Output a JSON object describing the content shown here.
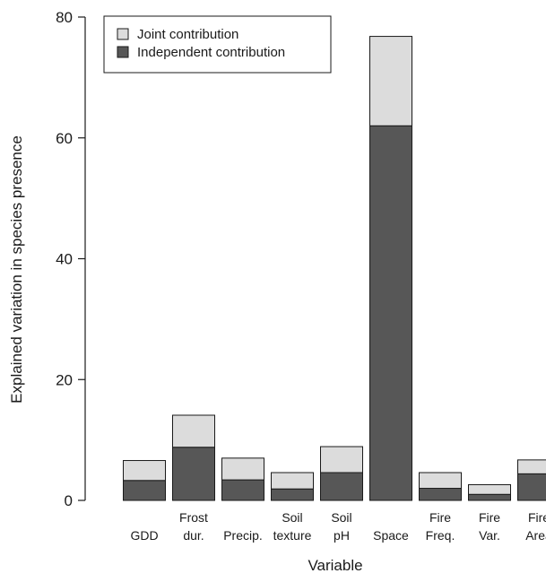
{
  "chart_data": {
    "type": "bar",
    "stacked": true,
    "xlabel": "Variable",
    "ylabel": "Explained variation in species presence",
    "ylim": [
      0,
      80
    ],
    "yticks": [
      0,
      20,
      40,
      60,
      80
    ],
    "grid": false,
    "legend_position": "top-left",
    "categories": [
      {
        "lines": [
          "",
          "GDD"
        ]
      },
      {
        "lines": [
          "Frost",
          "dur."
        ]
      },
      {
        "lines": [
          "",
          "Precip."
        ]
      },
      {
        "lines": [
          "Soil",
          "texture"
        ]
      },
      {
        "lines": [
          "Soil",
          "pH"
        ]
      },
      {
        "lines": [
          "",
          "Space"
        ]
      },
      {
        "lines": [
          "Fire",
          "Freq."
        ]
      },
      {
        "lines": [
          "Fire",
          "Var."
        ]
      },
      {
        "lines": [
          "Fire",
          "Area"
        ]
      }
    ],
    "series": [
      {
        "name": "Independent contribution",
        "color": "#575757",
        "values": [
          3.3,
          8.8,
          3.4,
          1.9,
          4.6,
          62.0,
          2.0,
          1.0,
          4.4
        ]
      },
      {
        "name": "Joint contribution",
        "color": "#dcdcdc",
        "values": [
          3.3,
          5.3,
          3.6,
          2.7,
          4.3,
          14.8,
          2.6,
          1.6,
          2.3
        ]
      }
    ],
    "legend": [
      {
        "label": "Joint contribution",
        "color": "#dcdcdc"
      },
      {
        "label": "Independent contribution",
        "color": "#575757"
      }
    ]
  }
}
